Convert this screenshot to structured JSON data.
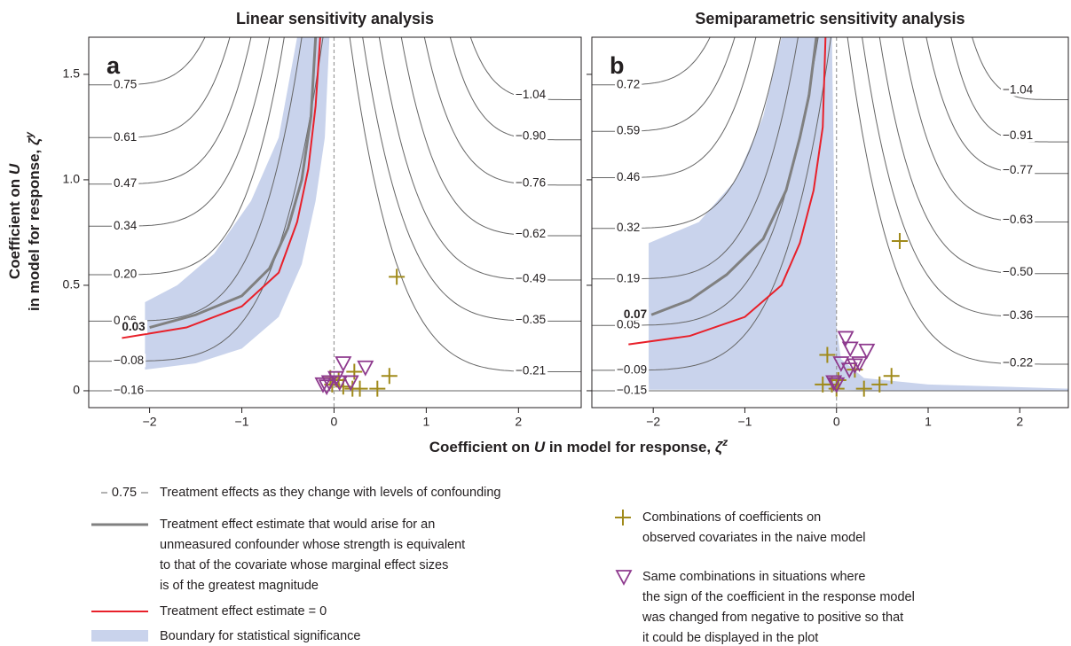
{
  "chart_data": [
    {
      "type": "contour",
      "title": "Linear sensitivity analysis",
      "panel": "a",
      "xlim": [
        -2.66,
        2.68
      ],
      "ylim": [
        -0.08,
        1.676
      ],
      "xticks": [
        {
          "value": -2,
          "label": "−2"
        },
        {
          "value": -1,
          "label": "−1"
        },
        0,
        1,
        2
      ],
      "yticks": [
        0,
        0.5,
        {
          "value": 1,
          "label": "1.0"
        },
        1.5
      ],
      "ytick_labels": true,
      "contours": [
        {
          "label": "0.75",
          "side": "left",
          "y": 1.45,
          "x_top": -1.4
        },
        {
          "label": "0.61",
          "side": "left",
          "y": 1.2,
          "x_top": -1.13
        },
        {
          "label": "0.47",
          "side": "left",
          "y": 0.98,
          "x_top": -0.9
        },
        {
          "label": "0.34",
          "side": "left",
          "y": 0.78,
          "x_top": -0.7
        },
        {
          "label": "0.20",
          "side": "left",
          "y": 0.55,
          "x_top": -0.54
        },
        {
          "label": "0.06",
          "side": "left",
          "y": 0.33,
          "x_top": -0.35
        },
        {
          "label": "−0.08",
          "side": "left",
          "y": 0.14,
          "x_top": -0.12
        },
        {
          "label": "−0.16",
          "side": "left",
          "y": 0,
          "x_top": null
        },
        {
          "label": "−1.04",
          "side": "right",
          "y": 1.38,
          "x_top": 1.48
        },
        {
          "label": "−0.90",
          "side": "right",
          "y": 1.19,
          "x_top": 1.26
        },
        {
          "label": "−0.76",
          "side": "right",
          "y": 0.975,
          "x_top": 0.98
        },
        {
          "label": "−0.62",
          "side": "right",
          "y": 0.735,
          "x_top": 0.73
        },
        {
          "label": "−0.49",
          "side": "right",
          "y": 0.525,
          "x_top": 0.49
        },
        {
          "label": "−0.35",
          "side": "right",
          "y": 0.33,
          "x_top": 0.31
        },
        {
          "label": "−0.21",
          "side": "right",
          "y": 0.09,
          "x_top": 0.17
        }
      ],
      "significance_band": {
        "color": "#c9d3ec",
        "x": [
          -2.05,
          -1.5,
          -1.0,
          -0.6,
          -0.35,
          -0.2,
          -0.1,
          -0.05,
          -0.4,
          -0.6,
          -0.9,
          -1.3,
          -1.7,
          -2.05
        ],
        "y": [
          0.1,
          0.13,
          0.2,
          0.35,
          0.6,
          0.9,
          1.2,
          1.676,
          1.676,
          1.2,
          0.9,
          0.65,
          0.5,
          0.42
        ]
      },
      "benchmark_curve": {
        "label": "0.03",
        "color": "#808080",
        "x": [
          -2.0,
          -1.5,
          -1.0,
          -0.7,
          -0.5,
          -0.35,
          -0.25,
          -0.2
        ],
        "y": [
          0.3,
          0.36,
          0.45,
          0.58,
          0.77,
          1.0,
          1.3,
          1.676
        ]
      },
      "zero_curve": {
        "color": "#e8202a",
        "x": [
          -2.3,
          -1.6,
          -1.0,
          -0.6,
          -0.4,
          -0.28,
          -0.2,
          -0.15
        ],
        "y": [
          0.25,
          0.3,
          0.4,
          0.56,
          0.8,
          1.05,
          1.35,
          1.676
        ]
      },
      "covariates": {
        "color": "#a08a1a",
        "x": [
          0.68,
          0.6,
          0.47,
          0.28,
          0.22,
          0.2,
          -0.04,
          -0.02,
          0.05,
          0.1
        ],
        "y": [
          0.54,
          0.07,
          0.01,
          0.01,
          0.09,
          0.01,
          0.06,
          0.03,
          0.05,
          0.02
        ]
      },
      "flipped_covariates": {
        "color": "#8e3a8e",
        "x": [
          0.1,
          0.34,
          0.18,
          -0.12,
          -0.05,
          0.02,
          0.06,
          -0.08
        ],
        "y": [
          0.13,
          0.11,
          0.04,
          0.03,
          0.04,
          0.06,
          0.04,
          0.02
        ]
      }
    },
    {
      "type": "contour",
      "title": "Semiparametric sensitivity analysis",
      "panel": "b",
      "xlim": [
        -2.67,
        2.53
      ],
      "ylim": [
        -0.08,
        1.676
      ],
      "xticks": [
        {
          "value": -2,
          "label": "−2"
        },
        {
          "value": -1,
          "label": "−1"
        },
        0,
        1,
        2
      ],
      "yticks": [
        0,
        0.5,
        1,
        1.5
      ],
      "ytick_labels": false,
      "contours": [
        {
          "label": "0.72",
          "side": "left",
          "y": 1.45,
          "x_top": -1.38
        },
        {
          "label": "0.59",
          "side": "left",
          "y": 1.23,
          "x_top": -1.11
        },
        {
          "label": "0.46",
          "side": "left",
          "y": 1.01,
          "x_top": -0.88
        },
        {
          "label": "0.32",
          "side": "left",
          "y": 0.77,
          "x_top": -0.61
        },
        {
          "label": "0.19",
          "side": "left",
          "y": 0.53,
          "x_top": -0.42
        },
        {
          "label": "0.05",
          "side": "left",
          "y": 0.31,
          "x_top": -0.2
        },
        {
          "label": "−0.09",
          "side": "left",
          "y": 0.097,
          "x_top": -0.06
        },
        {
          "label": "−0.15",
          "side": "left",
          "y": 0,
          "x_top": null
        },
        {
          "label": "−1.04",
          "side": "right",
          "y": 1.38,
          "x_top": 1.48
        },
        {
          "label": "−0.91",
          "side": "right",
          "y": 1.18,
          "x_top": 1.25
        },
        {
          "label": "−0.77",
          "side": "right",
          "y": 1.03,
          "x_top": 0.98
        },
        {
          "label": "−0.63",
          "side": "right",
          "y": 0.8,
          "x_top": 0.72
        },
        {
          "label": "−0.50",
          "side": "right",
          "y": 0.555,
          "x_top": 0.47
        },
        {
          "label": "−0.36",
          "side": "right",
          "y": 0.35,
          "x_top": 0.28
        },
        {
          "label": "−0.22",
          "side": "right",
          "y": 0.126,
          "x_top": 0.12
        }
      ],
      "significance_band": {
        "color": "#c9d3ec",
        "x": [
          -2.05,
          0.0,
          0.5,
          2.53,
          2.53,
          1.0,
          0.3,
          0.05,
          0.0,
          -0.02,
          -0.05,
          -0.6,
          -0.8,
          -1.1,
          -1.5,
          -2.05
        ],
        "y": [
          0.005,
          0.005,
          0.0,
          0.0,
          0.01,
          0.03,
          0.06,
          0.15,
          0.3,
          0.8,
          1.676,
          1.676,
          1.3,
          1.0,
          0.8,
          0.7
        ]
      },
      "benchmark_curve": {
        "label": "0.07",
        "color": "#808080",
        "x": [
          -2.02,
          -1.6,
          -1.2,
          -0.8,
          -0.55,
          -0.4,
          -0.3,
          -0.22
        ],
        "y": [
          0.36,
          0.43,
          0.55,
          0.72,
          0.95,
          1.2,
          1.4,
          1.676
        ]
      },
      "zero_curve": {
        "color": "#e8202a",
        "x": [
          -2.27,
          -1.6,
          -1.0,
          -0.6,
          -0.4,
          -0.25,
          -0.15,
          -0.12
        ],
        "y": [
          0.22,
          0.26,
          0.35,
          0.5,
          0.7,
          0.95,
          1.25,
          1.676
        ]
      },
      "covariates": {
        "color": "#a08a1a",
        "x": [
          0.69,
          -0.1,
          0.6,
          0.47,
          0.3,
          0.2,
          -0.15,
          -0.05,
          0.0,
          0.02
        ],
        "y": [
          0.71,
          0.17,
          0.07,
          0.03,
          0.01,
          0.1,
          0.03,
          0.03,
          0.01,
          0.05
        ]
      },
      "flipped_covariates": {
        "color": "#8e3a8e",
        "x": [
          0.1,
          0.33,
          0.15,
          0.2,
          0.05,
          0.25,
          0.14,
          0.0,
          -0.03
        ],
        "y": [
          0.25,
          0.19,
          0.2,
          0.12,
          0.13,
          0.13,
          0.1,
          0.03,
          0.04
        ]
      }
    }
  ],
  "x_label": [
    "Coefficient on ",
    "U",
    " in model for response, ",
    "ζ",
    "z"
  ],
  "y_label": {
    "line1": [
      "Coefficient on ",
      "U"
    ],
    "line2": [
      "in model for response, ",
      "ζ",
      "y"
    ]
  },
  "legend": {
    "contour": {
      "sample_label": "0.75",
      "lines": [
        "Treatment effects as they change with levels of confounding"
      ]
    },
    "benchmark": {
      "lines": [
        "Treatment effect estimate that would arise for an",
        "unmeasured confounder whose strength is equivalent",
        "to that of the covariate whose marginal effect sizes",
        "is of the greatest magnitude"
      ]
    },
    "zero": {
      "lines": [
        "Treatment effect estimate = 0"
      ]
    },
    "band": {
      "lines": [
        "Boundary for statistical significance"
      ]
    },
    "covariates": {
      "lines": [
        "Combinations of coefficients on",
        "observed covariates in the naive model"
      ]
    },
    "flipped": {
      "lines": [
        "Same combinations in situations where",
        "the sign of the coefficient in the response model",
        "was changed from negative to positive so that",
        "it could be displayed in the plot"
      ]
    }
  }
}
